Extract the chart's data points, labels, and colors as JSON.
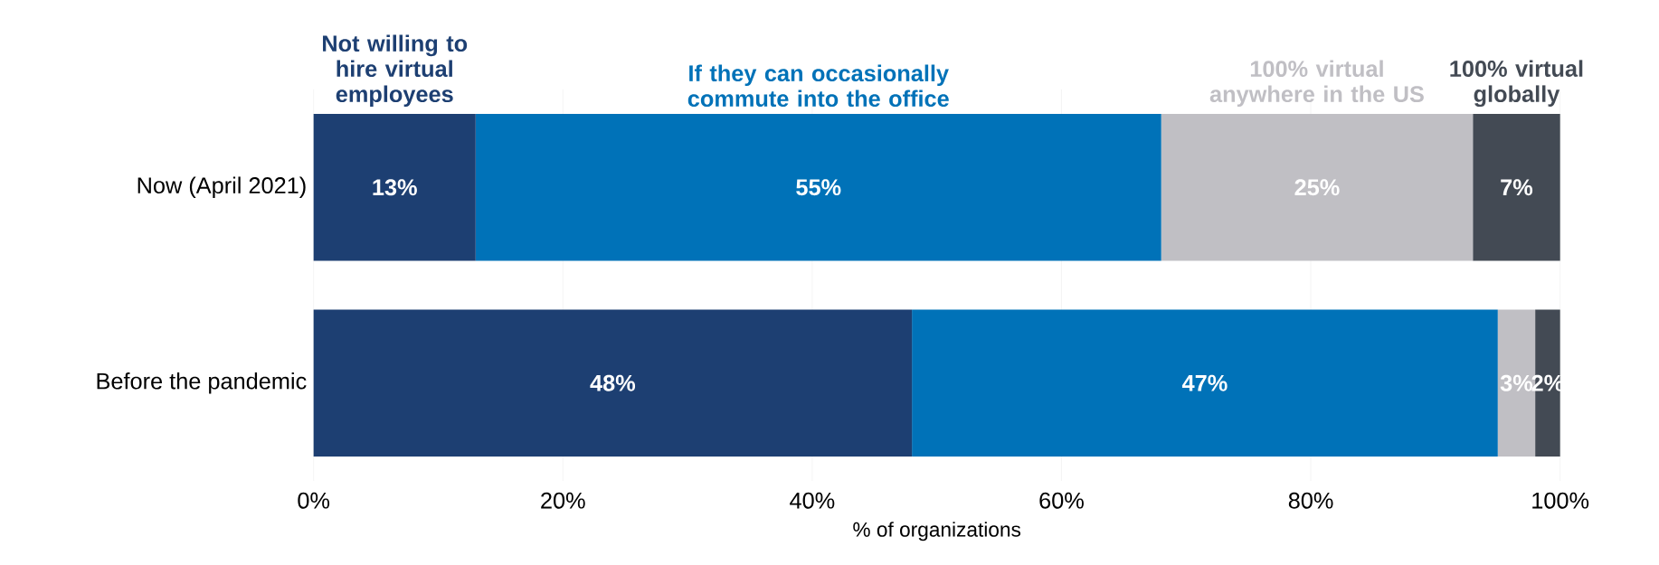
{
  "chart_data": {
    "type": "bar",
    "orientation": "horizontal",
    "stacked": true,
    "xlabel": "% of organizations",
    "categories": [
      "Now (April 2021)",
      "Before the pandemic"
    ],
    "series": [
      {
        "name": "Not willing to hire virtual employees",
        "color": "#1d3f72",
        "values": [
          13,
          48
        ],
        "value_labels": [
          "13%",
          "48%"
        ]
      },
      {
        "name": "If they can occasionally commute into the office",
        "color": "#0072b8",
        "values": [
          55,
          47
        ],
        "value_labels": [
          "55%",
          "47%"
        ]
      },
      {
        "name": "100% virtual anywhere in the US",
        "color": "#c0bfc4",
        "values": [
          25,
          3
        ],
        "value_labels": [
          "25%",
          "3%"
        ]
      },
      {
        "name": "100% virtual globally",
        "color": "#434a54",
        "values": [
          7,
          2
        ],
        "value_labels": [
          "7%",
          "2%"
        ]
      }
    ],
    "xlim": [
      0,
      100
    ],
    "xticks": [
      {
        "value": 0,
        "label": "0%"
      },
      {
        "value": 20,
        "label": "20%"
      },
      {
        "value": 40,
        "label": "40%"
      },
      {
        "value": 60,
        "label": "60%"
      },
      {
        "value": 80,
        "label": "80%"
      },
      {
        "value": 100,
        "label": "100%"
      }
    ],
    "grid": "x",
    "legend": false
  }
}
